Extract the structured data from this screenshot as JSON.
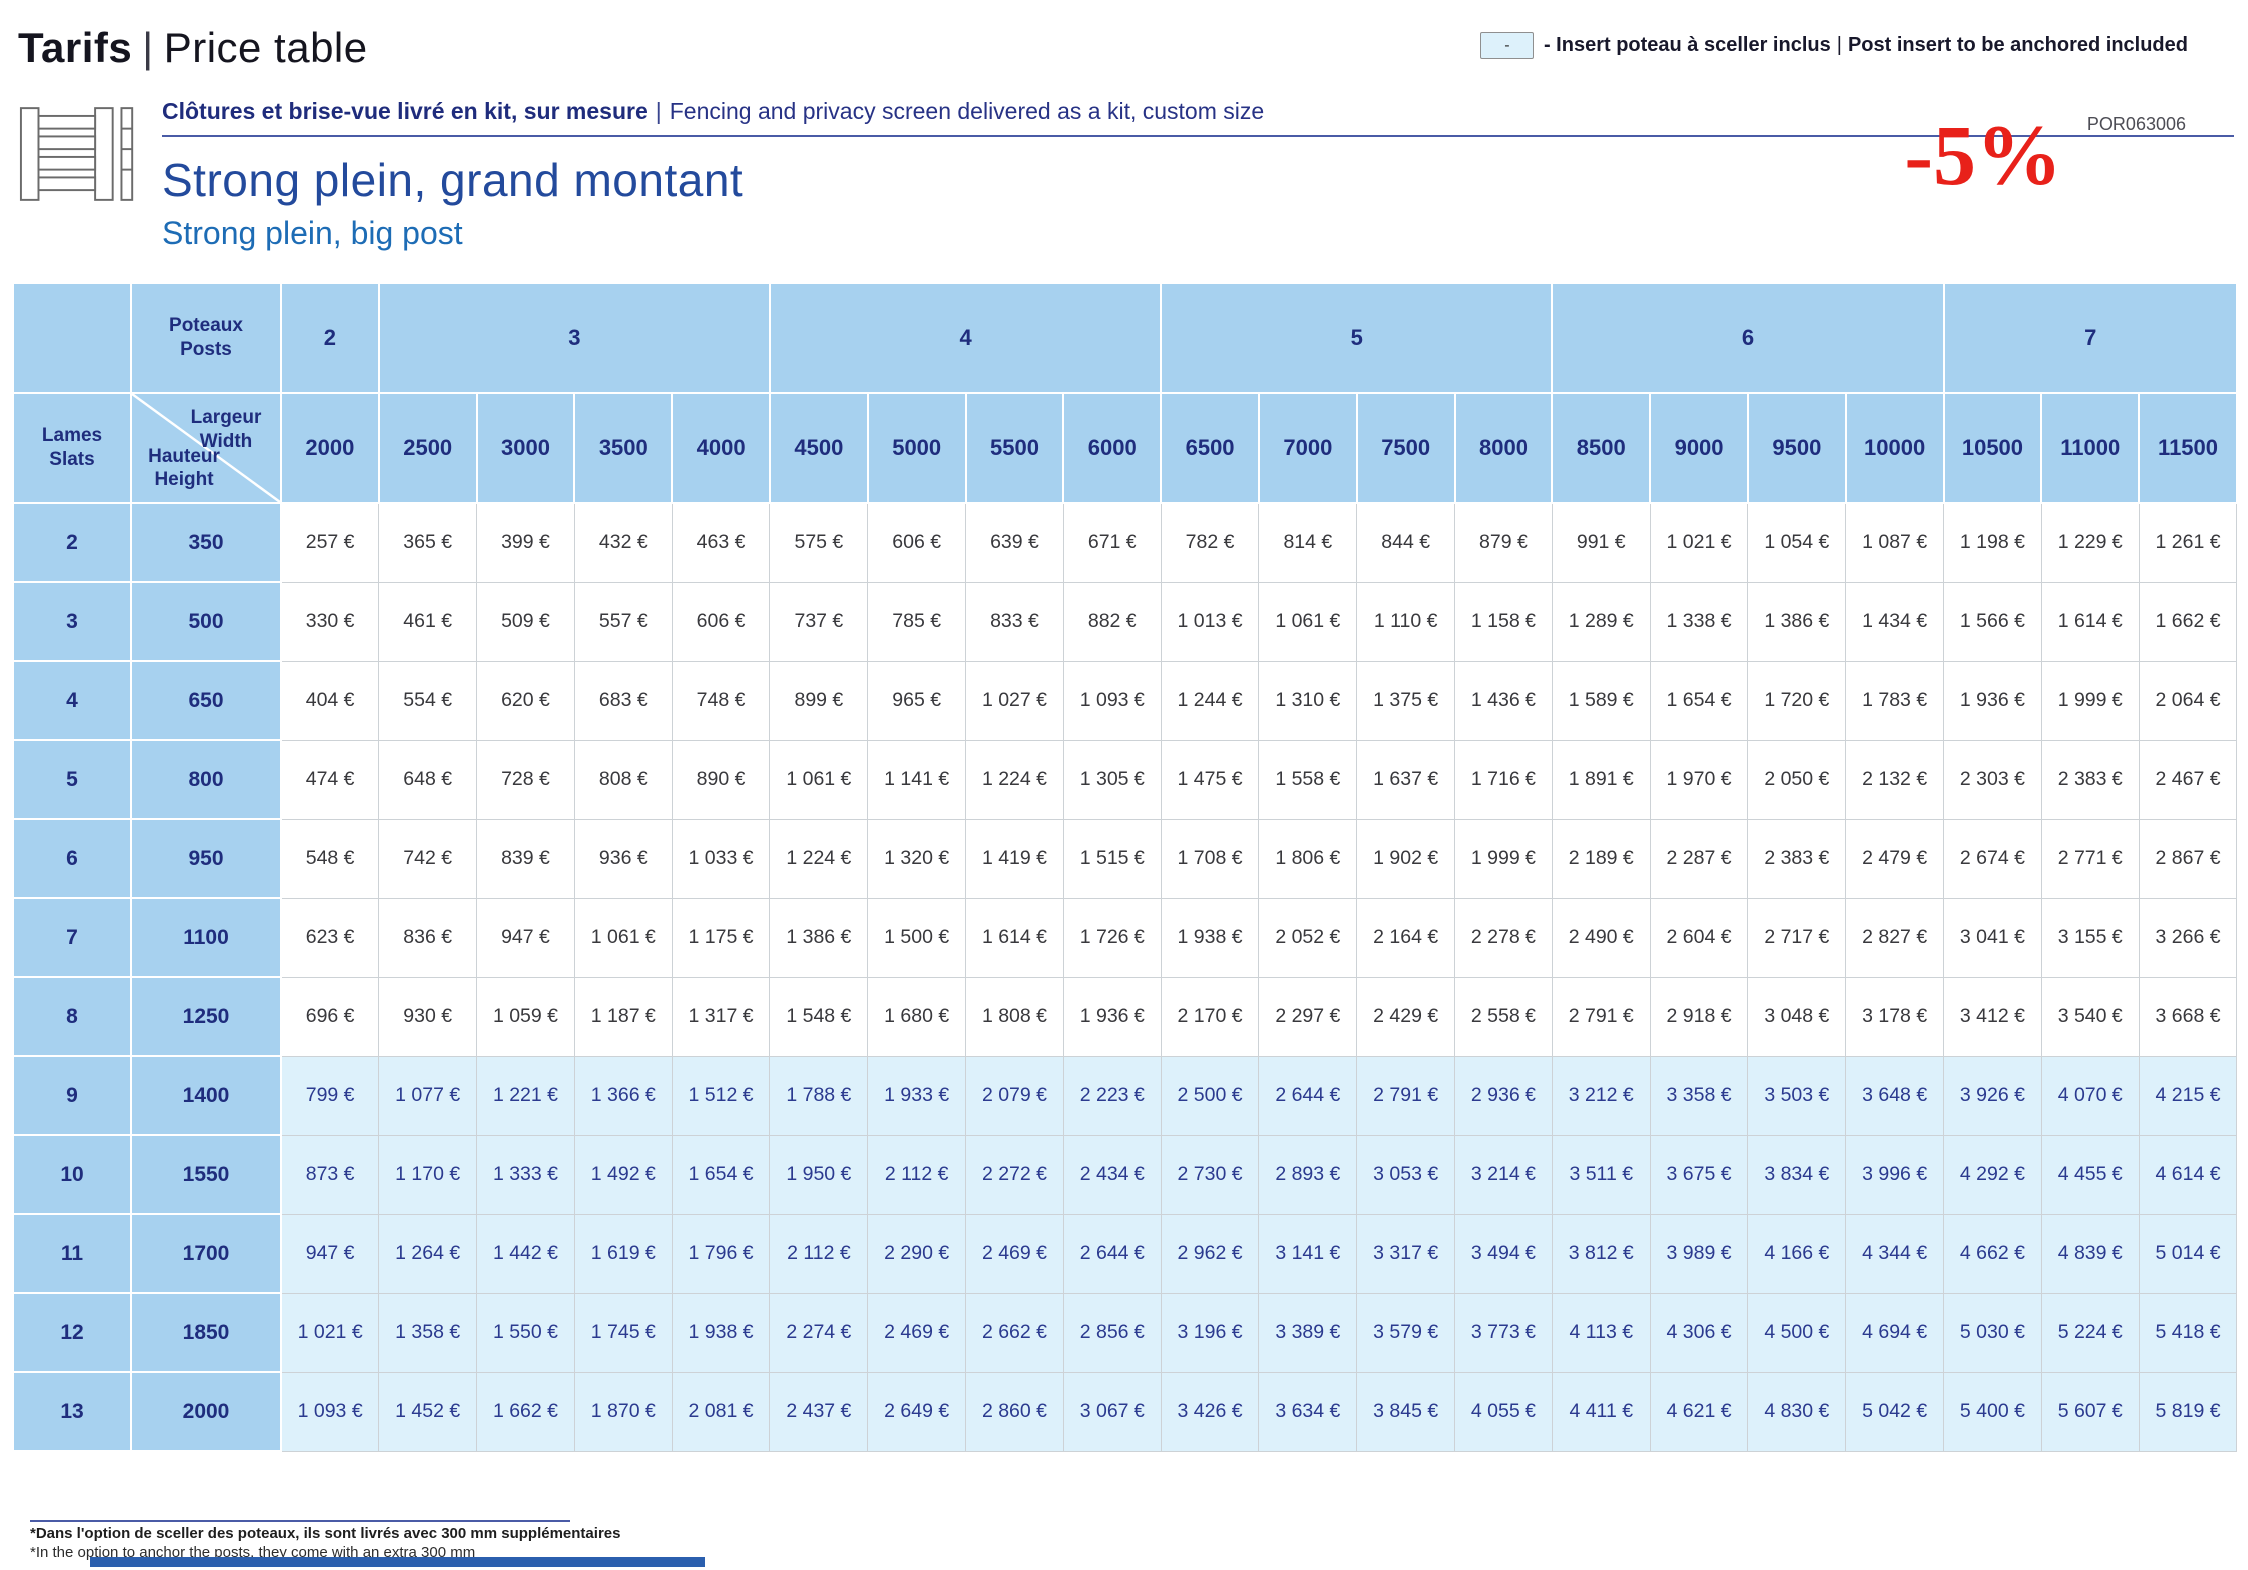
{
  "page": {
    "title_bold": "Tarifs",
    "title_sep": "|",
    "title_rest": "Price table",
    "legend": {
      "box_symbol": "-",
      "text_fr": "- Insert poteau à sceller inclus",
      "text_sep": "|",
      "text_en": "Post insert to be anchored included"
    }
  },
  "product": {
    "tagline_fr": "Clôtures et brise-vue livré en kit, sur mesure",
    "tagline_sep": "|",
    "tagline_en": "Fencing and privacy screen delivered as a kit, custom size",
    "name_fr": "Strong plein, grand montant",
    "name_en": "Strong plein, big post",
    "discount": "-5%",
    "ref_code": "POR063006",
    "fence_icon": "fence-kit-icon"
  },
  "table": {
    "posts_label": [
      "Poteaux",
      "Posts"
    ],
    "slats_label": [
      "Lames",
      "Slats"
    ],
    "width_label": [
      "Largeur",
      "Width"
    ],
    "height_label": [
      "Hauteur",
      "Height"
    ],
    "post_groups": [
      {
        "label": "2",
        "span": 1
      },
      {
        "label": "3",
        "span": 4
      },
      {
        "label": "4",
        "span": 4
      },
      {
        "label": "5",
        "span": 4
      },
      {
        "label": "6",
        "span": 4
      },
      {
        "label": "7",
        "span": 3
      }
    ],
    "widths": [
      "2000",
      "2500",
      "3000",
      "3500",
      "4000",
      "4500",
      "5000",
      "5500",
      "6000",
      "6500",
      "7000",
      "7500",
      "8000",
      "8500",
      "9000",
      "9500",
      "10000",
      "10500",
      "11000",
      "11500"
    ],
    "rows": [
      {
        "slats": "2",
        "height": "350",
        "highlight": false,
        "prices": [
          "257 €",
          "365 €",
          "399 €",
          "432 €",
          "463 €",
          "575 €",
          "606 €",
          "639 €",
          "671 €",
          "782 €",
          "814 €",
          "844 €",
          "879 €",
          "991 €",
          "1 021 €",
          "1 054 €",
          "1 087 €",
          "1 198 €",
          "1 229 €",
          "1 261 €"
        ]
      },
      {
        "slats": "3",
        "height": "500",
        "highlight": false,
        "prices": [
          "330 €",
          "461 €",
          "509 €",
          "557 €",
          "606 €",
          "737 €",
          "785 €",
          "833 €",
          "882 €",
          "1 013 €",
          "1 061 €",
          "1 110 €",
          "1 158 €",
          "1 289 €",
          "1 338 €",
          "1 386 €",
          "1 434 €",
          "1 566 €",
          "1 614 €",
          "1 662 €"
        ]
      },
      {
        "slats": "4",
        "height": "650",
        "highlight": false,
        "prices": [
          "404 €",
          "554 €",
          "620 €",
          "683 €",
          "748 €",
          "899 €",
          "965 €",
          "1 027 €",
          "1 093 €",
          "1 244 €",
          "1 310 €",
          "1 375 €",
          "1 436 €",
          "1 589 €",
          "1 654 €",
          "1 720 €",
          "1 783 €",
          "1 936 €",
          "1 999 €",
          "2 064 €"
        ]
      },
      {
        "slats": "5",
        "height": "800",
        "highlight": false,
        "prices": [
          "474 €",
          "648 €",
          "728 €",
          "808 €",
          "890 €",
          "1 061 €",
          "1 141 €",
          "1 224 €",
          "1 305 €",
          "1 475 €",
          "1 558 €",
          "1 637 €",
          "1 716 €",
          "1 891 €",
          "1 970 €",
          "2 050 €",
          "2 132 €",
          "2 303 €",
          "2 383 €",
          "2 467 €"
        ]
      },
      {
        "slats": "6",
        "height": "950",
        "highlight": false,
        "prices": [
          "548 €",
          "742 €",
          "839 €",
          "936 €",
          "1 033 €",
          "1 224 €",
          "1 320 €",
          "1 419 €",
          "1 515 €",
          "1 708 €",
          "1 806 €",
          "1 902 €",
          "1 999 €",
          "2 189 €",
          "2 287 €",
          "2 383 €",
          "2 479 €",
          "2 674 €",
          "2 771 €",
          "2 867 €"
        ]
      },
      {
        "slats": "7",
        "height": "1100",
        "highlight": false,
        "prices": [
          "623 €",
          "836 €",
          "947 €",
          "1 061 €",
          "1 175 €",
          "1 386 €",
          "1 500 €",
          "1 614 €",
          "1 726 €",
          "1 938 €",
          "2 052 €",
          "2 164 €",
          "2 278 €",
          "2 490 €",
          "2 604 €",
          "2 717 €",
          "2 827 €",
          "3 041 €",
          "3 155 €",
          "3 266 €"
        ]
      },
      {
        "slats": "8",
        "height": "1250",
        "highlight": false,
        "prices": [
          "696 €",
          "930 €",
          "1 059 €",
          "1 187 €",
          "1 317 €",
          "1 548 €",
          "1 680 €",
          "1 808 €",
          "1 936 €",
          "2 170 €",
          "2 297 €",
          "2 429 €",
          "2 558 €",
          "2 791 €",
          "2 918 €",
          "3 048 €",
          "3 178 €",
          "3 412 €",
          "3 540 €",
          "3 668 €"
        ]
      },
      {
        "slats": "9",
        "height": "1400",
        "highlight": true,
        "prices": [
          "799 €",
          "1 077 €",
          "1 221 €",
          "1 366 €",
          "1 512 €",
          "1 788 €",
          "1 933 €",
          "2 079 €",
          "2 223 €",
          "2 500 €",
          "2 644 €",
          "2 791 €",
          "2 936 €",
          "3 212 €",
          "3 358 €",
          "3 503 €",
          "3 648 €",
          "3 926 €",
          "4 070 €",
          "4 215 €"
        ]
      },
      {
        "slats": "10",
        "height": "1550",
        "highlight": true,
        "prices": [
          "873 €",
          "1 170 €",
          "1 333 €",
          "1 492 €",
          "1 654 €",
          "1 950 €",
          "2 112 €",
          "2 272 €",
          "2 434 €",
          "2 730 €",
          "2 893 €",
          "3 053 €",
          "3 214 €",
          "3 511 €",
          "3 675 €",
          "3 834 €",
          "3 996 €",
          "4 292 €",
          "4 455 €",
          "4 614 €"
        ]
      },
      {
        "slats": "11",
        "height": "1700",
        "highlight": true,
        "prices": [
          "947 €",
          "1 264 €",
          "1 442 €",
          "1 619 €",
          "1 796 €",
          "2 112 €",
          "2 290 €",
          "2 469 €",
          "2 644 €",
          "2 962 €",
          "3 141 €",
          "3 317 €",
          "3 494 €",
          "3 812 €",
          "3 989 €",
          "4 166 €",
          "4 344 €",
          "4 662 €",
          "4 839 €",
          "5 014 €"
        ]
      },
      {
        "slats": "12",
        "height": "1850",
        "highlight": true,
        "prices": [
          "1 021 €",
          "1 358 €",
          "1 550 €",
          "1 745 €",
          "1 938 €",
          "2 274 €",
          "2 469 €",
          "2 662 €",
          "2 856 €",
          "3 196 €",
          "3 389 €",
          "3 579 €",
          "3 773 €",
          "4 113 €",
          "4 306 €",
          "4 500 €",
          "4 694 €",
          "5 030 €",
          "5 224 €",
          "5 418 €"
        ]
      },
      {
        "slats": "13",
        "height": "2000",
        "highlight": true,
        "prices": [
          "1 093 €",
          "1 452 €",
          "1 662 €",
          "1 870 €",
          "2 081 €",
          "2 437 €",
          "2 649 €",
          "2 860 €",
          "3 067 €",
          "3 426 €",
          "3 634 €",
          "3 845 €",
          "4 055 €",
          "4 411 €",
          "4 621 €",
          "4 830 €",
          "5 042 €",
          "5 400 €",
          "5 607 €",
          "5 819 €"
        ]
      }
    ]
  },
  "footnotes": {
    "fr": "*Dans l'option de sceller des poteaux, ils sont livrés avec 300 mm supplémentaires",
    "en": "*In the option to anchor the posts, they come with an extra 300 mm"
  },
  "colors": {
    "header_blue": "#a7d1ef",
    "highlight_blue": "#ddf1fb",
    "navy": "#1f2d7d",
    "title_blue": "#234a9c",
    "sub_blue": "#1d6cb5",
    "accent_red": "#e8211a",
    "rule_blue": "#4a5ba6",
    "bar_blue": "#2b5fae",
    "grid_gray": "#cdd2d6"
  }
}
